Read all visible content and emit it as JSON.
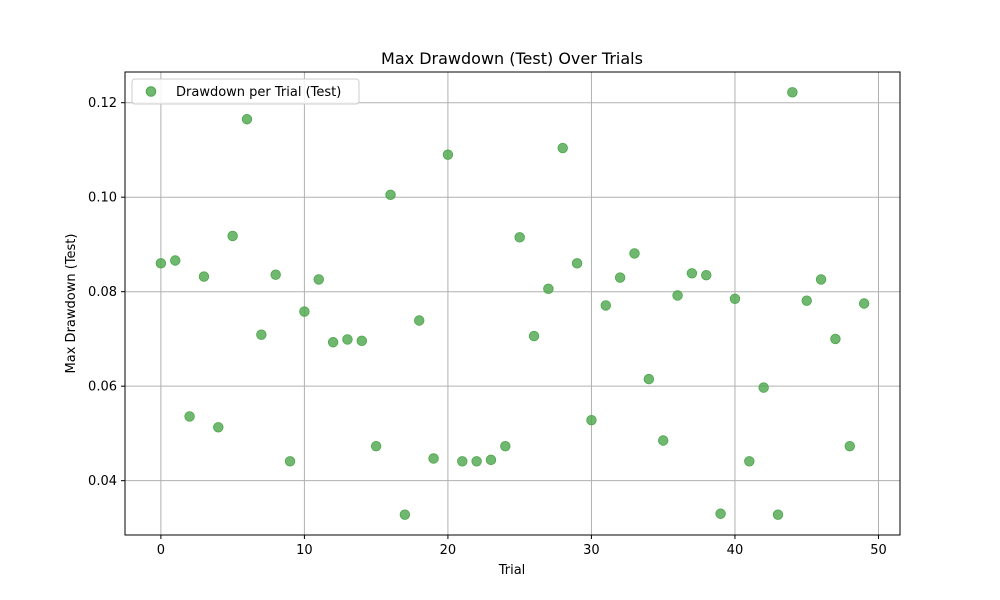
{
  "chart_data": {
    "type": "scatter",
    "title": "Max Drawdown (Test) Over Trials",
    "xlabel": "Trial",
    "ylabel": "Max Drawdown (Test)",
    "xlim": [
      -2.5,
      51.5
    ],
    "ylim": [
      0.0285,
      0.1265
    ],
    "xticks": [
      0,
      10,
      20,
      30,
      40,
      50
    ],
    "xtick_labels": [
      "0",
      "10",
      "20",
      "30",
      "40",
      "50"
    ],
    "yticks": [
      0.04,
      0.06,
      0.08,
      0.1,
      0.12
    ],
    "ytick_labels": [
      "0.04",
      "0.06",
      "0.08",
      "0.10",
      "0.12"
    ],
    "grid": true,
    "legend": {
      "position": "top-left",
      "entries": [
        "Drawdown per Trial (Test)"
      ]
    },
    "series": [
      {
        "name": "Drawdown per Trial (Test)",
        "color": "#4ca64c",
        "x": [
          0,
          1,
          2,
          3,
          4,
          5,
          6,
          7,
          8,
          9,
          10,
          11,
          12,
          13,
          14,
          15,
          16,
          17,
          18,
          19,
          20,
          21,
          22,
          23,
          24,
          25,
          26,
          27,
          28,
          29,
          30,
          31,
          32,
          33,
          34,
          35,
          36,
          37,
          38,
          39,
          40,
          41,
          42,
          43,
          44,
          45,
          46,
          47,
          48,
          49
        ],
        "values": [
          0.086,
          0.0866,
          0.0536,
          0.0832,
          0.0513,
          0.0918,
          0.1165,
          0.0709,
          0.0836,
          0.0441,
          0.0758,
          0.0826,
          0.0693,
          0.0699,
          0.0696,
          0.0473,
          0.1005,
          0.0328,
          0.0739,
          0.0447,
          0.109,
          0.0441,
          0.0441,
          0.0444,
          0.0473,
          0.0915,
          0.0706,
          0.0806,
          0.1104,
          0.086,
          0.0528,
          0.0771,
          0.083,
          0.0881,
          0.0615,
          0.0485,
          0.0792,
          0.0839,
          0.0835,
          0.033,
          0.0785,
          0.0441,
          0.0597,
          0.0328,
          0.1222,
          0.0781,
          0.0826,
          0.07,
          0.0473,
          0.0775
        ]
      }
    ]
  }
}
